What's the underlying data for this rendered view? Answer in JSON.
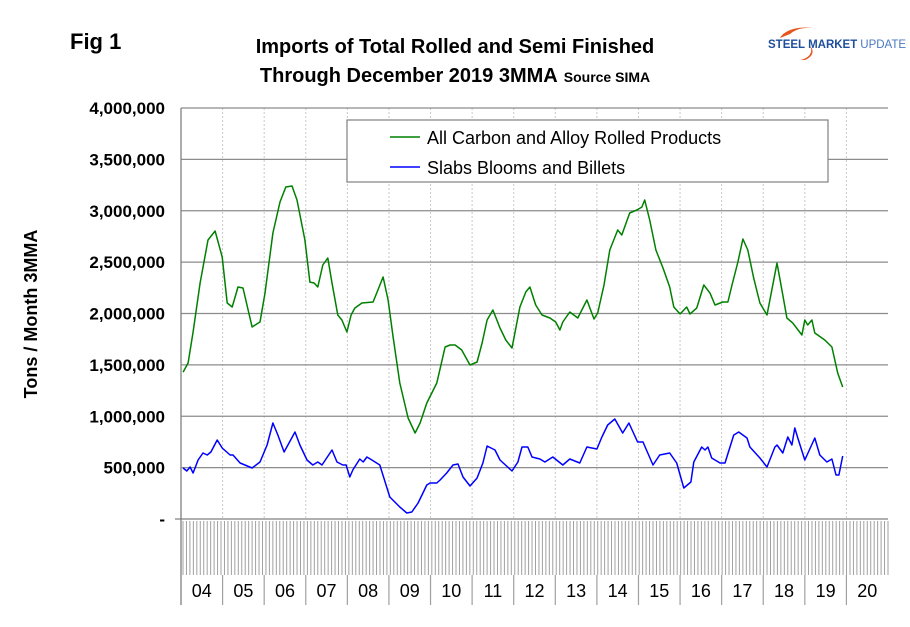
{
  "figure_label": "Fig 1",
  "logo": {
    "text_bold": "STEEL",
    "text_mid": "MARKET",
    "text_light": "UPDATE",
    "arc_color": "#e8541c",
    "text_color": "#1f4e9c"
  },
  "chart_data": {
    "type": "line",
    "title_line1": "Imports of Total Rolled and Semi Finished",
    "title_line2": "Through December 2019 3MMA",
    "title_source": "Source SIMA",
    "xlabel": "",
    "ylabel": "Tons / Month 3MMA",
    "ylim": [
      0,
      4000000
    ],
    "xlim": [
      2004,
      2021
    ],
    "yticks": [
      0,
      500000,
      1000000,
      1500000,
      2000000,
      2500000,
      3000000,
      3500000,
      4000000
    ],
    "ytick_labels": [
      "-",
      "500,000",
      "1,000,000",
      "1,500,000",
      "2,000,000",
      "2,500,000",
      "3,000,000",
      "3,500,000",
      "4,000,000"
    ],
    "xtick_labels": [
      "04",
      "05",
      "06",
      "07",
      "08",
      "09",
      "10",
      "11",
      "12",
      "13",
      "14",
      "15",
      "16",
      "17",
      "18",
      "19",
      "20"
    ],
    "grid": true,
    "legend_position": "top-right",
    "series": [
      {
        "name": "All Carbon and Alloy Rolled Products",
        "color": "#008000",
        "x": [
          2004.05,
          2004.17,
          2004.29,
          2004.46,
          2004.65,
          2004.82,
          2004.99,
          2005.11,
          2005.23,
          2005.37,
          2005.49,
          2005.71,
          2005.9,
          2006.02,
          2006.21,
          2006.38,
          2006.52,
          2006.67,
          2006.79,
          2006.98,
          2007.1,
          2007.2,
          2007.29,
          2007.41,
          2007.53,
          2007.63,
          2007.77,
          2007.87,
          2007.99,
          2008.09,
          2008.18,
          2008.35,
          2008.62,
          2008.86,
          2008.98,
          2009.1,
          2009.26,
          2009.46,
          2009.63,
          2009.75,
          2009.91,
          2010.15,
          2010.35,
          2010.47,
          2010.59,
          2010.75,
          2010.95,
          2011.12,
          2011.24,
          2011.36,
          2011.5,
          2011.67,
          2011.81,
          2011.96,
          2012.15,
          2012.29,
          2012.39,
          2012.53,
          2012.68,
          2012.87,
          2013.01,
          2013.11,
          2013.18,
          2013.35,
          2013.54,
          2013.76,
          2013.93,
          2014.02,
          2014.17,
          2014.31,
          2014.5,
          2014.6,
          2014.79,
          2014.96,
          2015.08,
          2015.15,
          2015.27,
          2015.42,
          2015.59,
          2015.75,
          2015.85,
          2016.0,
          2016.16,
          2016.24,
          2016.4,
          2016.57,
          2016.72,
          2016.84,
          2017.03,
          2017.15,
          2017.25,
          2017.39,
          2017.51,
          2017.63,
          2017.77,
          2017.92,
          2018.09,
          2018.33,
          2018.47,
          2018.57,
          2018.71,
          2018.93,
          2019.0,
          2019.07,
          2019.17,
          2019.24,
          2019.48,
          2019.65,
          2019.79,
          2019.91
        ],
        "values": [
          1430000,
          1518000,
          1820000,
          2297000,
          2715000,
          2803000,
          2550000,
          2102000,
          2063000,
          2258000,
          2248000,
          1869000,
          1917000,
          2199000,
          2783000,
          3085000,
          3231000,
          3241000,
          3105000,
          2715000,
          2306000,
          2297000,
          2258000,
          2472000,
          2540000,
          2297000,
          1985000,
          1937000,
          1820000,
          1985000,
          2053000,
          2102000,
          2112000,
          2355000,
          2131000,
          1771000,
          1324000,
          983000,
          837000,
          934000,
          1129000,
          1324000,
          1674000,
          1693000,
          1693000,
          1645000,
          1499000,
          1528000,
          1713000,
          1937000,
          2034000,
          1859000,
          1742000,
          1664000,
          2063000,
          2209000,
          2258000,
          2083000,
          1985000,
          1956000,
          1917000,
          1839000,
          1917000,
          2015000,
          1956000,
          2131000,
          1946000,
          2005000,
          2277000,
          2618000,
          2813000,
          2764000,
          2978000,
          3007000,
          3036000,
          3105000,
          2910000,
          2618000,
          2443000,
          2258000,
          2063000,
          1995000,
          2063000,
          1995000,
          2053000,
          2277000,
          2199000,
          2083000,
          2112000,
          2112000,
          2277000,
          2501000,
          2725000,
          2618000,
          2345000,
          2102000,
          1985000,
          2491000,
          2180000,
          1956000,
          1907000,
          1791000,
          1937000,
          1888000,
          1937000,
          1810000,
          1742000,
          1674000,
          1421000,
          1285000
        ]
      },
      {
        "name": "Slabs Blooms and Billets",
        "color": "#0000ff",
        "x": [
          2004.05,
          2004.14,
          2004.22,
          2004.29,
          2004.41,
          2004.53,
          2004.63,
          2004.72,
          2004.87,
          2004.99,
          2005.18,
          2005.25,
          2005.42,
          2005.71,
          2005.9,
          2006.07,
          2006.21,
          2006.33,
          2006.48,
          2006.74,
          2006.86,
          2007.03,
          2007.17,
          2007.29,
          2007.39,
          2007.63,
          2007.75,
          2007.89,
          2007.97,
          2008.06,
          2008.13,
          2008.3,
          2008.38,
          2008.47,
          2008.59,
          2008.78,
          2009.02,
          2009.26,
          2009.43,
          2009.55,
          2009.7,
          2009.91,
          2009.99,
          2010.15,
          2010.23,
          2010.39,
          2010.54,
          2010.66,
          2010.78,
          2010.95,
          2011.12,
          2011.26,
          2011.36,
          2011.55,
          2011.67,
          2011.96,
          2012.1,
          2012.2,
          2012.34,
          2012.44,
          2012.63,
          2012.75,
          2012.94,
          2013.18,
          2013.35,
          2013.59,
          2013.76,
          2014.0,
          2014.12,
          2014.26,
          2014.43,
          2014.62,
          2014.77,
          2014.98,
          2015.11,
          2015.35,
          2015.51,
          2015.75,
          2015.92,
          2016.09,
          2016.26,
          2016.33,
          2016.52,
          2016.6,
          2016.67,
          2016.76,
          2016.96,
          2017.08,
          2017.29,
          2017.41,
          2017.61,
          2017.68,
          2017.92,
          2018.09,
          2018.28,
          2018.33,
          2018.47,
          2018.59,
          2018.69,
          2018.76,
          2018.83,
          2019.0,
          2019.24,
          2019.36,
          2019.53,
          2019.65,
          2019.75,
          2019.82,
          2019.91
        ],
        "values": [
          496000,
          467000,
          506000,
          448000,
          574000,
          642000,
          623000,
          652000,
          769000,
          691000,
          623000,
          623000,
          545000,
          496000,
          555000,
          720000,
          934000,
          817000,
          652000,
          847000,
          720000,
          574000,
          526000,
          555000,
          526000,
          672000,
          555000,
          526000,
          526000,
          409000,
          477000,
          584000,
          555000,
          603000,
          574000,
          526000,
          214000,
          117000,
          58000,
          68000,
          156000,
          331000,
          350000,
          350000,
          380000,
          448000,
          526000,
          535000,
          409000,
          321000,
          399000,
          545000,
          710000,
          672000,
          574000,
          467000,
          555000,
          701000,
          701000,
          603000,
          584000,
          555000,
          603000,
          526000,
          584000,
          545000,
          701000,
          681000,
          798000,
          915000,
          973000,
          837000,
          934000,
          749000,
          749000,
          526000,
          623000,
          642000,
          545000,
          302000,
          360000,
          555000,
          701000,
          672000,
          701000,
          594000,
          545000,
          545000,
          817000,
          847000,
          788000,
          701000,
          594000,
          506000,
          701000,
          720000,
          642000,
          798000,
          720000,
          886000,
          788000,
          574000,
          788000,
          623000,
          555000,
          584000,
          428000,
          428000,
          613000
        ]
      }
    ]
  }
}
